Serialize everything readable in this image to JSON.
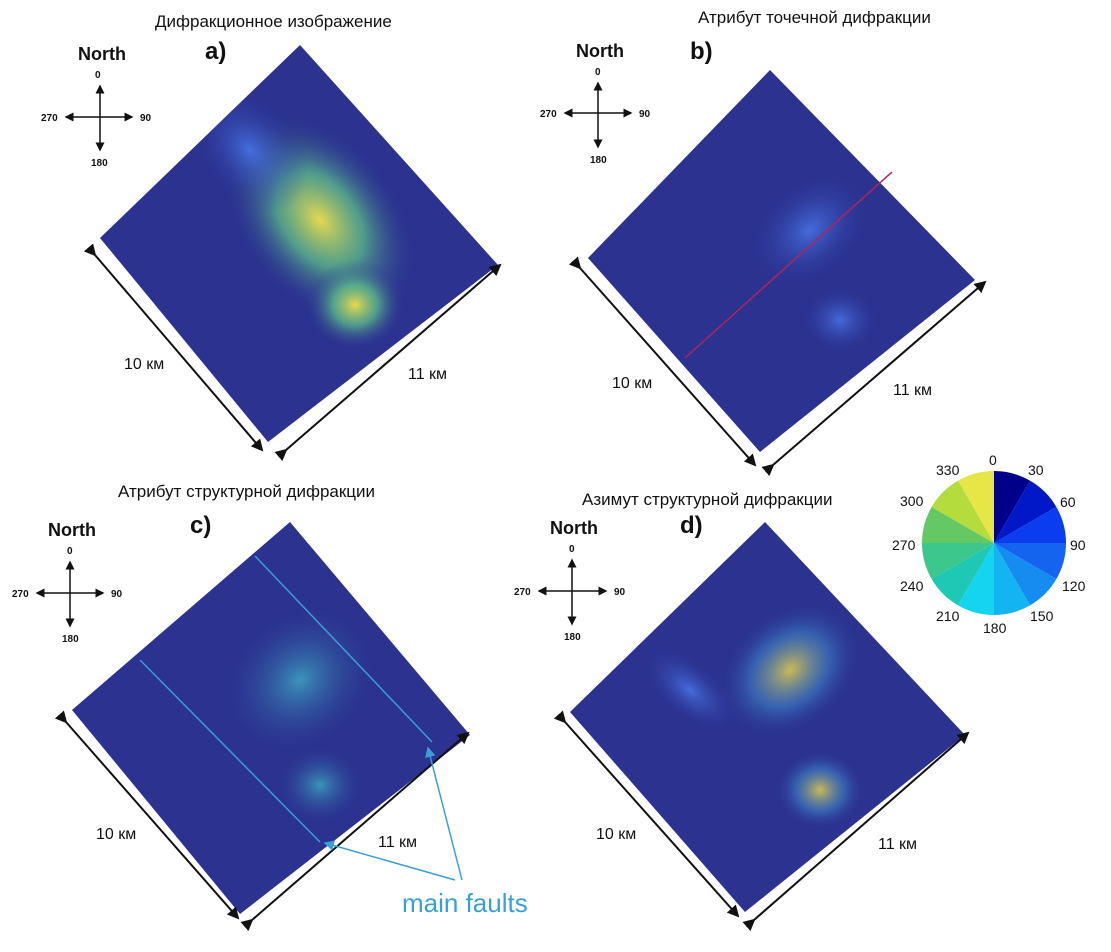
{
  "panels": [
    {
      "label": "a)",
      "title": "Дифракционное изображение",
      "north": "North",
      "dirs": {
        "n": "0",
        "e": "90",
        "s": "180",
        "w": "270"
      },
      "dist_left": "10 км",
      "dist_right": "11 км"
    },
    {
      "label": "b)",
      "title": "Атрибут точечной дифракции",
      "north": "North",
      "dirs": {
        "n": "0",
        "e": "90",
        "s": "180",
        "w": "270"
      },
      "dist_left": "10 км",
      "dist_right": "11 км"
    },
    {
      "label": "c)",
      "title": "Атрибут структурной дифракции",
      "north": "North",
      "dirs": {
        "n": "0",
        "e": "90",
        "s": "180",
        "w": "270"
      },
      "dist_left": "10 км",
      "dist_right": "11 км"
    },
    {
      "label": "d)",
      "title": "Азимут структурной дифракции",
      "north": "North",
      "dirs": {
        "n": "0",
        "e": "90",
        "s": "180",
        "w": "270"
      },
      "dist_left": "10 км",
      "dist_right": "11 км"
    }
  ],
  "annotation": "main faults",
  "azimuth_legend": {
    "ticks": [
      "0",
      "30",
      "60",
      "90",
      "120",
      "150",
      "180",
      "210",
      "240",
      "270",
      "300",
      "330"
    ],
    "colors": [
      "#00008b",
      "#0018c8",
      "#0a3cf0",
      "#1464f0",
      "#148cf0",
      "#14b4f0",
      "#14d4f0",
      "#1ec8b4",
      "#3cc88c",
      "#64c864",
      "#b4dc3c",
      "#e6e646"
    ]
  },
  "colors": {
    "background_map": "#2b3290",
    "fault_line": "#3a9fd6"
  }
}
